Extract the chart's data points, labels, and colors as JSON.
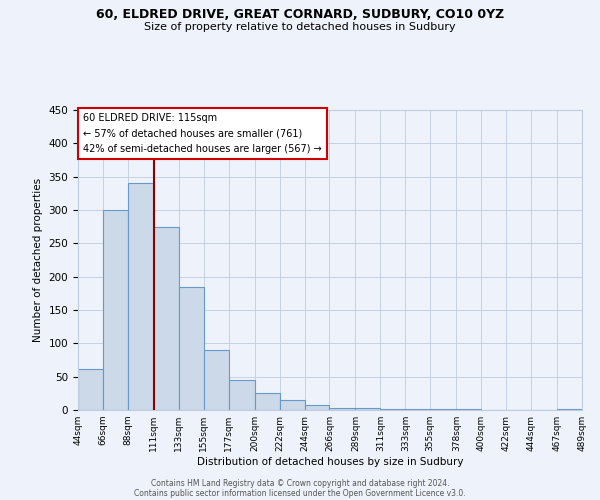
{
  "title": "60, ELDRED DRIVE, GREAT CORNARD, SUDBURY, CO10 0YZ",
  "subtitle": "Size of property relative to detached houses in Sudbury",
  "xlabel": "Distribution of detached houses by size in Sudbury",
  "ylabel": "Number of detached properties",
  "bar_edges": [
    44,
    66,
    88,
    111,
    133,
    155,
    177,
    200,
    222,
    244,
    266,
    289,
    311,
    333,
    355,
    378,
    400,
    422,
    444,
    467,
    489
  ],
  "bar_heights": [
    62,
    300,
    340,
    275,
    185,
    90,
    45,
    25,
    15,
    7,
    3,
    3,
    2,
    1,
    1,
    1,
    0,
    0,
    0,
    2
  ],
  "bar_color": "#ccd9e8",
  "bar_edge_color": "#6699cc",
  "property_line_x": 111,
  "property_line_color": "#8b0000",
  "annotation_line1": "60 ELDRED DRIVE: 115sqm",
  "annotation_line2": "← 57% of detached houses are smaller (761)",
  "annotation_line3": "42% of semi-detached houses are larger (567) →",
  "ylim": [
    0,
    450
  ],
  "yticks": [
    0,
    50,
    100,
    150,
    200,
    250,
    300,
    350,
    400,
    450
  ],
  "bg_color": "#eef2fa",
  "grid_color": "#c0cce0",
  "footer_line1": "Contains HM Land Registry data © Crown copyright and database right 2024.",
  "footer_line2": "Contains public sector information licensed under the Open Government Licence v3.0."
}
